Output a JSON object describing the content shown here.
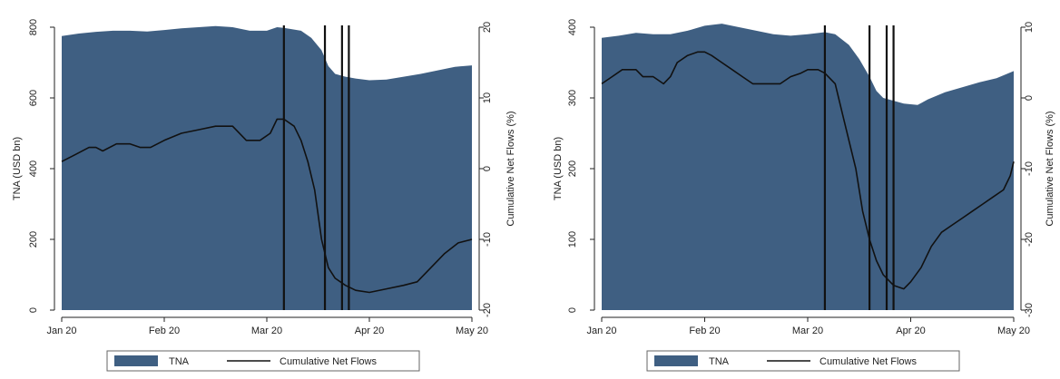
{
  "chart_data": [
    {
      "type": "area",
      "x_ticks": [
        "Jan 20",
        "Feb 20",
        "Mar 20",
        "Apr 20",
        "May 20"
      ],
      "xlim": [
        0,
        120
      ],
      "ylabel_left": "TNA (USD bn)",
      "ylabel_right": "Cumulative Net Flows (%)",
      "ylim_left": [
        0,
        800
      ],
      "yticks_left": [
        0,
        200,
        400,
        600,
        800
      ],
      "ylim_right": [
        -20,
        20
      ],
      "yticks_right": [
        -20,
        -10,
        0,
        10,
        20
      ],
      "vlines": [
        65,
        77,
        82,
        84
      ],
      "legend": [
        "TNA",
        "Cumulative Net Flows"
      ],
      "legend_position": "bottom",
      "colors": {
        "area": "#3f5f82",
        "line": "#111111"
      },
      "series": [
        {
          "name": "TNA",
          "kind": "area",
          "axis": "left",
          "x": [
            0,
            5,
            10,
            15,
            20,
            25,
            30,
            35,
            40,
            45,
            50,
            55,
            60,
            63,
            65,
            70,
            73,
            76,
            78,
            80,
            83,
            86,
            90,
            95,
            100,
            105,
            110,
            115,
            120
          ],
          "values": [
            775,
            782,
            787,
            790,
            790,
            788,
            792,
            797,
            800,
            803,
            800,
            790,
            790,
            800,
            798,
            790,
            770,
            735,
            690,
            668,
            660,
            655,
            650,
            652,
            660,
            668,
            678,
            688,
            692
          ]
        },
        {
          "name": "Cumulative Net Flows",
          "kind": "line",
          "axis": "right",
          "x": [
            0,
            4,
            8,
            10,
            12,
            16,
            20,
            23,
            26,
            30,
            35,
            40,
            45,
            50,
            54,
            58,
            61,
            63,
            65,
            68,
            70,
            72,
            74,
            76,
            78,
            80,
            83,
            86,
            90,
            95,
            100,
            104,
            108,
            112,
            116,
            120
          ],
          "values": [
            1,
            2,
            3,
            3,
            2.5,
            3.5,
            3.5,
            3,
            3,
            4,
            5,
            5.5,
            6,
            6,
            4,
            4,
            5,
            7,
            7,
            6,
            4,
            1,
            -3,
            -10,
            -14,
            -15.5,
            -16.5,
            -17.2,
            -17.5,
            -17,
            -16.5,
            -16,
            -14,
            -12,
            -10.5,
            -10
          ]
        }
      ]
    },
    {
      "type": "area",
      "x_ticks": [
        "Jan 20",
        "Feb 20",
        "Mar 20",
        "Apr 20",
        "May 20"
      ],
      "xlim": [
        0,
        120
      ],
      "ylabel_left": "TNA (USD bn)",
      "ylabel_right": "Cumulative Net Flows (%)",
      "ylim_left": [
        0,
        400
      ],
      "yticks_left": [
        0,
        100,
        200,
        300,
        400
      ],
      "ylim_right": [
        -30,
        10
      ],
      "yticks_right": [
        -30,
        -20,
        -10,
        0,
        10
      ],
      "vlines": [
        65,
        78,
        83,
        85
      ],
      "legend": [
        "TNA",
        "Cumulative Net Flows"
      ],
      "legend_position": "bottom",
      "colors": {
        "area": "#3f5f82",
        "line": "#111111"
      },
      "series": [
        {
          "name": "TNA",
          "kind": "area",
          "axis": "left",
          "x": [
            0,
            5,
            10,
            15,
            20,
            25,
            30,
            35,
            40,
            45,
            50,
            55,
            60,
            65,
            68,
            72,
            75,
            78,
            80,
            82,
            85,
            88,
            92,
            95,
            100,
            105,
            110,
            115,
            120
          ],
          "values": [
            385,
            388,
            392,
            390,
            390,
            395,
            402,
            405,
            400,
            395,
            390,
            388,
            390,
            393,
            390,
            375,
            355,
            330,
            310,
            300,
            296,
            292,
            290,
            298,
            308,
            315,
            322,
            328,
            338
          ]
        },
        {
          "name": "Cumulative Net Flows",
          "kind": "line",
          "axis": "right",
          "x": [
            0,
            3,
            6,
            8,
            10,
            12,
            15,
            18,
            20,
            22,
            25,
            28,
            30,
            32,
            35,
            38,
            41,
            44,
            48,
            50,
            52,
            55,
            58,
            60,
            63,
            65,
            68,
            70,
            72,
            74,
            76,
            78,
            80,
            82,
            85,
            88,
            90,
            93,
            96,
            99,
            102,
            105,
            108,
            111,
            114,
            117,
            119,
            120
          ],
          "values": [
            2,
            3,
            4,
            4,
            4,
            3,
            3,
            2,
            3,
            5,
            6,
            6.5,
            6.5,
            6,
            5,
            4,
            3,
            2,
            2,
            2,
            2,
            3,
            3.5,
            4,
            4,
            3.5,
            2,
            -2,
            -6,
            -10,
            -16,
            -20,
            -23,
            -25,
            -26.5,
            -27,
            -26,
            -24,
            -21,
            -19,
            -18,
            -17,
            -16,
            -15,
            -14,
            -13,
            -11,
            -9
          ]
        }
      ]
    }
  ]
}
